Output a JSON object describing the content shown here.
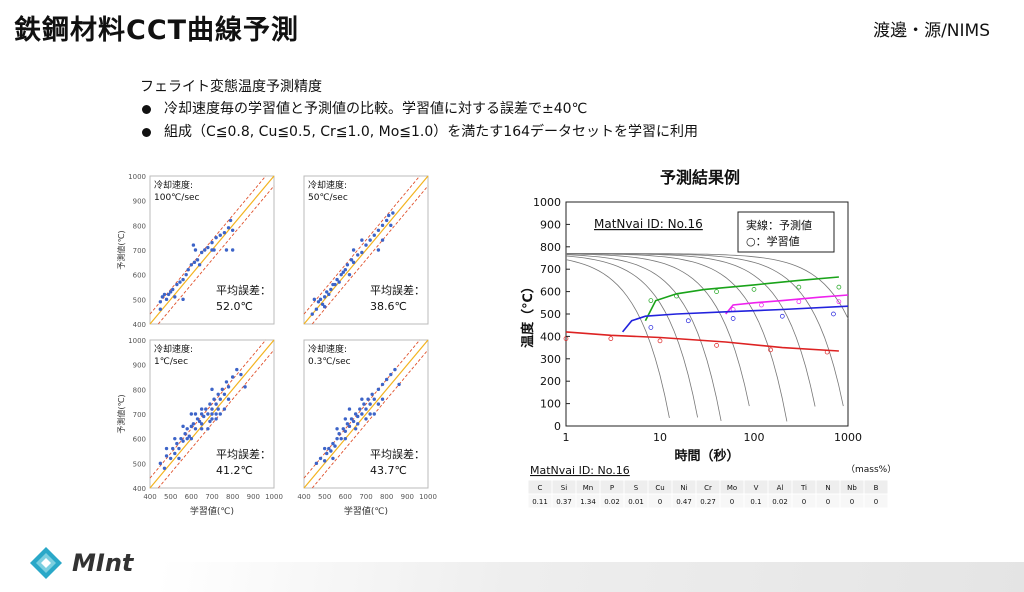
{
  "header": {
    "title": "鉄鋼材料CCT曲線予測",
    "author": "渡邊・源/NIMS"
  },
  "intro": {
    "subtitle": "フェライト変態温度予測精度",
    "bullets": [
      "冷却速度毎の学習値と予測値の比較。学習値に対する誤差で±40℃",
      "組成（C≦0.8, Cu≦0.5, Cr≦1.0, Mo≦1.0）を満たす164データセットを学習に利用"
    ]
  },
  "chart_data": [
    {
      "type": "scatter",
      "panel": "top-left",
      "rate_title": "冷却速度:",
      "rate_value": "100℃/sec",
      "err_label": "平均誤差：",
      "err_value": "52.0℃",
      "ylabel": "予測値(℃)",
      "xlabel": "",
      "xlim": [
        400,
        1000
      ],
      "ylim": [
        400,
        1000
      ],
      "yticks": [
        "400",
        "500",
        "600",
        "700",
        "800",
        "900",
        "1000"
      ],
      "xticks": [],
      "points": [
        [
          450,
          490
        ],
        [
          460,
          510
        ],
        [
          470,
          520
        ],
        [
          480,
          500
        ],
        [
          490,
          520
        ],
        [
          500,
          530
        ],
        [
          510,
          540
        ],
        [
          520,
          510
        ],
        [
          530,
          560
        ],
        [
          545,
          570
        ],
        [
          560,
          580
        ],
        [
          575,
          600
        ],
        [
          585,
          620
        ],
        [
          600,
          640
        ],
        [
          615,
          650
        ],
        [
          630,
          660
        ],
        [
          650,
          690
        ],
        [
          665,
          700
        ],
        [
          680,
          710
        ],
        [
          700,
          730
        ],
        [
          710,
          700
        ],
        [
          720,
          750
        ],
        [
          740,
          760
        ],
        [
          760,
          770
        ],
        [
          780,
          790
        ],
        [
          790,
          820
        ],
        [
          800,
          780
        ],
        [
          610,
          720
        ],
        [
          620,
          700
        ],
        [
          450,
          460
        ],
        [
          700,
          700
        ],
        [
          770,
          700
        ],
        [
          800,
          700
        ],
        [
          640,
          640
        ],
        [
          560,
          500
        ]
      ]
    },
    {
      "type": "scatter",
      "panel": "top-right",
      "rate_title": "冷却速度:",
      "rate_value": "50℃/sec",
      "err_label": "平均誤差：",
      "err_value": "38.6℃",
      "ylabel": "",
      "xlabel": "",
      "xlim": [
        400,
        1000
      ],
      "ylim": [
        400,
        1000
      ],
      "yticks": [],
      "xticks": [],
      "points": [
        [
          440,
          440
        ],
        [
          460,
          460
        ],
        [
          470,
          490
        ],
        [
          480,
          500
        ],
        [
          490,
          480
        ],
        [
          500,
          510
        ],
        [
          510,
          530
        ],
        [
          520,
          520
        ],
        [
          530,
          540
        ],
        [
          540,
          560
        ],
        [
          550,
          560
        ],
        [
          560,
          580
        ],
        [
          570,
          570
        ],
        [
          580,
          600
        ],
        [
          590,
          610
        ],
        [
          600,
          620
        ],
        [
          610,
          640
        ],
        [
          620,
          600
        ],
        [
          630,
          660
        ],
        [
          640,
          650
        ],
        [
          660,
          680
        ],
        [
          680,
          690
        ],
        [
          700,
          720
        ],
        [
          720,
          740
        ],
        [
          740,
          760
        ],
        [
          760,
          780
        ],
        [
          780,
          800
        ],
        [
          800,
          820
        ],
        [
          810,
          840
        ],
        [
          830,
          850
        ],
        [
          820,
          800
        ],
        [
          760,
          700
        ],
        [
          780,
          740
        ],
        [
          500,
          470
        ],
        [
          450,
          500
        ],
        [
          640,
          700
        ],
        [
          680,
          740
        ]
      ]
    },
    {
      "type": "scatter",
      "panel": "bottom-left",
      "rate_title": "冷却速度:",
      "rate_value": "1℃/sec",
      "err_label": "平均誤差：",
      "err_value": "41.2℃",
      "ylabel": "予測値(℃)",
      "xlabel": "学習値(℃)",
      "xlim": [
        400,
        1000
      ],
      "ylim": [
        400,
        1000
      ],
      "yticks": [
        "400",
        "500",
        "600",
        "700",
        "800",
        "900",
        "1000"
      ],
      "xticks": [
        "400",
        "500",
        "600",
        "700",
        "800",
        "900",
        "1000"
      ],
      "points": [
        [
          450,
          500
        ],
        [
          470,
          480
        ],
        [
          480,
          530
        ],
        [
          500,
          520
        ],
        [
          510,
          560
        ],
        [
          520,
          540
        ],
        [
          530,
          580
        ],
        [
          540,
          560
        ],
        [
          550,
          600
        ],
        [
          560,
          590
        ],
        [
          570,
          620
        ],
        [
          580,
          640
        ],
        [
          590,
          610
        ],
        [
          600,
          650
        ],
        [
          610,
          660
        ],
        [
          620,
          640
        ],
        [
          630,
          680
        ],
        [
          640,
          670
        ],
        [
          650,
          700
        ],
        [
          660,
          690
        ],
        [
          670,
          720
        ],
        [
          680,
          700
        ],
        [
          690,
          740
        ],
        [
          700,
          720
        ],
        [
          710,
          760
        ],
        [
          720,
          740
        ],
        [
          730,
          780
        ],
        [
          740,
          760
        ],
        [
          750,
          800
        ],
        [
          760,
          780
        ],
        [
          770,
          830
        ],
        [
          780,
          810
        ],
        [
          800,
          850
        ],
        [
          820,
          880
        ],
        [
          840,
          860
        ],
        [
          860,
          810
        ],
        [
          600,
          600
        ],
        [
          650,
          640
        ],
        [
          700,
          680
        ],
        [
          720,
          700
        ],
        [
          580,
          600
        ],
        [
          620,
          700
        ],
        [
          560,
          650
        ],
        [
          690,
          670
        ],
        [
          700,
          800
        ],
        [
          740,
          700
        ],
        [
          680,
          640
        ],
        [
          540,
          520
        ],
        [
          520,
          600
        ],
        [
          600,
          700
        ],
        [
          650,
          720
        ],
        [
          760,
          720
        ],
        [
          780,
          760
        ],
        [
          720,
          680
        ],
        [
          480,
          560
        ],
        [
          650,
          660
        ],
        [
          700,
          700
        ],
        [
          730,
          720
        ]
      ]
    },
    {
      "type": "scatter",
      "panel": "bottom-right",
      "rate_title": "冷却速度:",
      "rate_value": "0.3℃/sec",
      "err_label": "平均誤差：",
      "err_value": "43.7℃",
      "ylabel": "",
      "xlabel": "学習値(℃)",
      "xlim": [
        400,
        1000
      ],
      "ylim": [
        400,
        1000
      ],
      "yticks": [],
      "xticks": [
        "400",
        "500",
        "600",
        "700",
        "800",
        "900",
        "1000"
      ],
      "points": [
        [
          460,
          500
        ],
        [
          480,
          520
        ],
        [
          500,
          510
        ],
        [
          510,
          540
        ],
        [
          520,
          560
        ],
        [
          530,
          550
        ],
        [
          540,
          580
        ],
        [
          550,
          570
        ],
        [
          560,
          600
        ],
        [
          570,
          620
        ],
        [
          580,
          600
        ],
        [
          590,
          640
        ],
        [
          600,
          630
        ],
        [
          610,
          660
        ],
        [
          620,
          650
        ],
        [
          630,
          680
        ],
        [
          640,
          670
        ],
        [
          650,
          700
        ],
        [
          660,
          690
        ],
        [
          670,
          720
        ],
        [
          680,
          700
        ],
        [
          690,
          740
        ],
        [
          700,
          720
        ],
        [
          710,
          760
        ],
        [
          720,
          740
        ],
        [
          730,
          780
        ],
        [
          740,
          760
        ],
        [
          760,
          800
        ],
        [
          780,
          820
        ],
        [
          800,
          840
        ],
        [
          820,
          860
        ],
        [
          840,
          880
        ],
        [
          860,
          820
        ],
        [
          700,
          680
        ],
        [
          650,
          640
        ],
        [
          600,
          600
        ],
        [
          560,
          640
        ],
        [
          620,
          720
        ],
        [
          680,
          760
        ],
        [
          740,
          700
        ],
        [
          780,
          760
        ],
        [
          540,
          520
        ],
        [
          500,
          560
        ],
        [
          660,
          660
        ],
        [
          720,
          700
        ],
        [
          760,
          740
        ],
        [
          600,
          680
        ]
      ]
    },
    {
      "type": "line",
      "panel": "cct-example",
      "title": "予測結果例",
      "annotation": "MatNvai ID: No.16",
      "legend": [
        "実線：予測値",
        "○：学習値"
      ],
      "xlabel": "時間（秒）",
      "ylabel": "温度（℃）",
      "xscale": "log",
      "xlim": [
        1,
        1000
      ],
      "ylim": [
        0,
        1000
      ],
      "xticks": [
        "1",
        "10",
        "100",
        "1000"
      ],
      "yticks": [
        "0",
        "100",
        "200",
        "300",
        "400",
        "500",
        "600",
        "700",
        "800",
        "900",
        "1000"
      ],
      "series": [
        {
          "color": "#1aa31a",
          "x": [
            7,
            9,
            15,
            30,
            100,
            300,
            800
          ],
          "y": [
            470,
            560,
            590,
            610,
            630,
            650,
            665
          ],
          "circles": [
            [
              8,
              560
            ],
            [
              15,
              580
            ],
            [
              40,
              600
            ],
            [
              100,
              610
            ],
            [
              300,
              620
            ],
            [
              800,
              620
            ]
          ]
        },
        {
          "color": "#ee22ee",
          "x": [
            50,
            60,
            100,
            200,
            500,
            1000
          ],
          "y": [
            500,
            540,
            550,
            560,
            575,
            585
          ],
          "circles": [
            [
              60,
              520
            ],
            [
              120,
              540
            ],
            [
              300,
              555
            ],
            [
              800,
              555
            ]
          ]
        },
        {
          "color": "#2222dd",
          "x": [
            4,
            5,
            7,
            15,
            50,
            200,
            1000
          ],
          "y": [
            420,
            470,
            490,
            500,
            510,
            520,
            535
          ],
          "circles": [
            [
              8,
              440
            ],
            [
              20,
              470
            ],
            [
              60,
              480
            ],
            [
              200,
              490
            ],
            [
              700,
              500
            ]
          ]
        },
        {
          "color": "#dd2222",
          "x": [
            1,
            3,
            10,
            50,
            200,
            800
          ],
          "y": [
            420,
            405,
            395,
            375,
            350,
            335
          ],
          "circles": [
            [
              1,
              390
            ],
            [
              3,
              390
            ],
            [
              10,
              380
            ],
            [
              40,
              360
            ],
            [
              150,
              340
            ],
            [
              600,
              330
            ]
          ]
        }
      ]
    }
  ],
  "composition_table": {
    "id_label": "MatNvai ID: No.16",
    "unit": "（mass%）",
    "headers": [
      "C",
      "Si",
      "Mn",
      "P",
      "S",
      "Cu",
      "Ni",
      "Cr",
      "Mo",
      "V",
      "Al",
      "Ti",
      "N",
      "Nb",
      "B"
    ],
    "values": [
      "0.11",
      "0.37",
      "1.34",
      "0.02",
      "0.01",
      "0",
      "0.47",
      "0.27",
      "0",
      "0.1",
      "0.02",
      "0",
      "0",
      "0",
      "0"
    ]
  },
  "colors": {
    "dots": "#3d64c8",
    "solid_line": "#f3b31f",
    "dashed_line": "#e0512b"
  },
  "logo": {
    "text": "MInt",
    "icon": "mint-logo-icon"
  }
}
